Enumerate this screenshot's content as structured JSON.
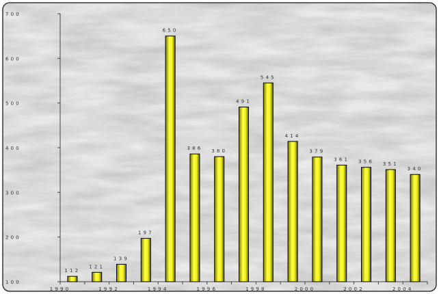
{
  "chart_data": {
    "type": "bar",
    "title": "",
    "xlabel": "",
    "ylabel": "",
    "categories": [
      "1990",
      "1991",
      "1992",
      "1993",
      "1994",
      "1995",
      "1996",
      "1997",
      "1998",
      "1999",
      "2000",
      "2001",
      "2002",
      "2003",
      "2004"
    ],
    "x_tick_labels": [
      "1990",
      "1992",
      "1994",
      "1996",
      "1998",
      "2000",
      "2002",
      "2004"
    ],
    "values": [
      112,
      121,
      139,
      197,
      650,
      386,
      380,
      491,
      545,
      414,
      379,
      361,
      356,
      351,
      340
    ],
    "data_labels": [
      "112",
      "121",
      "139",
      "197",
      "650",
      "386",
      "380",
      "491",
      "545",
      "414",
      "379",
      "361",
      "356",
      "351",
      "340"
    ],
    "ylim": [
      100,
      700
    ],
    "y_ticks": [
      100,
      200,
      300,
      400,
      500,
      600,
      700
    ],
    "bar_color": "#ffff33",
    "bar_edge_color": "#000000",
    "background": "marble texture",
    "grid": false,
    "legend": "none"
  }
}
